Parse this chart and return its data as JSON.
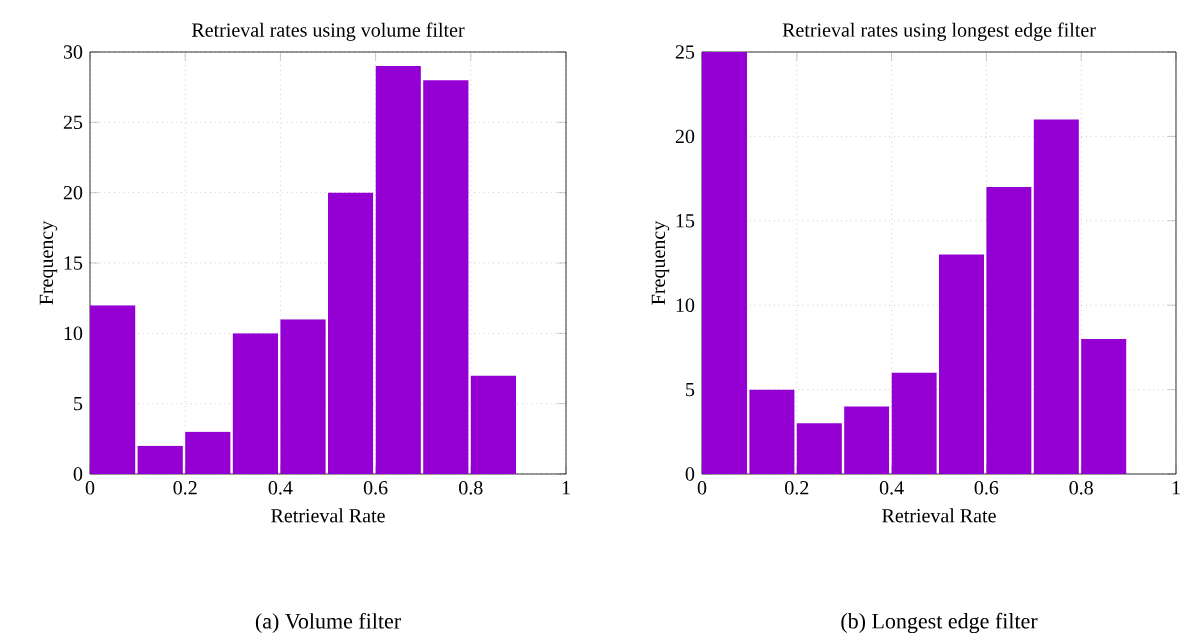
{
  "chart_data": [
    {
      "type": "histogram",
      "title": "Retrieval rates using volume filter",
      "xlabel": "Retrieval Rate",
      "ylabel": "Frequency",
      "bins": [
        0,
        0.1,
        0.2,
        0.3,
        0.4,
        0.5,
        0.6,
        0.7,
        0.8,
        0.9
      ],
      "values": [
        12,
        2,
        3,
        10,
        11,
        20,
        29,
        28,
        7
      ],
      "color": "#9400d3",
      "xlim": [
        0,
        1
      ],
      "ylim": [
        0,
        30
      ],
      "xticks": [
        0,
        0.2,
        0.4,
        0.6,
        0.8,
        1
      ],
      "yticks": [
        0,
        5,
        10,
        15,
        20,
        25,
        30
      ],
      "grid": true,
      "annotations": [
        "(a) Volume filter"
      ]
    },
    {
      "type": "histogram",
      "title": "Retrieval rates using longest edge filter",
      "xlabel": "Retrieval Rate",
      "ylabel": "Frequency",
      "bins": [
        0,
        0.1,
        0.2,
        0.3,
        0.4,
        0.5,
        0.6,
        0.7,
        0.8,
        0.9
      ],
      "values": [
        25,
        5,
        3,
        4,
        6,
        13,
        17,
        21,
        8
      ],
      "color": "#9400d3",
      "xlim": [
        0,
        1
      ],
      "ylim": [
        0,
        25
      ],
      "xticks": [
        0,
        0.2,
        0.4,
        0.6,
        0.8,
        1
      ],
      "yticks": [
        0,
        5,
        10,
        15,
        20,
        25
      ],
      "grid": true,
      "annotations": [
        "(b) Longest edge filter"
      ]
    }
  ]
}
